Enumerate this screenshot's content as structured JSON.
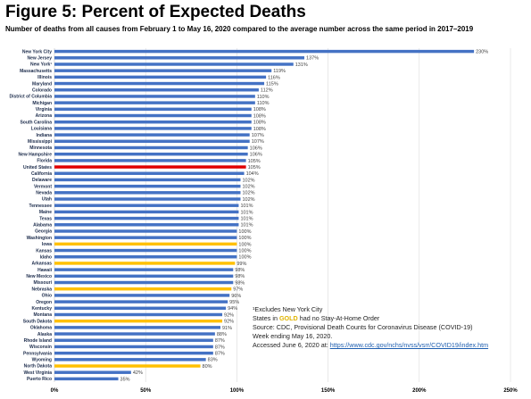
{
  "header": {
    "title": "Figure 5: Percent of Expected Deaths",
    "subtitle": "Number of deaths from all causes from February 1 to May 16, 2020  compared to the average number across the same period in 2017–2019"
  },
  "colors": {
    "default": "#4472c4",
    "highlight_us": "#e00000",
    "gold": "#ffc000",
    "grid": "#d9d9d9",
    "axis": "#bfbfbf"
  },
  "chart_data": {
    "type": "bar",
    "orientation": "horizontal",
    "title": "Figure 5: Percent of Expected Deaths",
    "xlim": [
      0,
      250
    ],
    "xticks": [
      0,
      50,
      100,
      150,
      200,
      250
    ],
    "xtick_labels": [
      "0%",
      "50%",
      "100%",
      "150%",
      "200%",
      "250%"
    ],
    "grid": "vertical",
    "bars": [
      {
        "label": "New York City",
        "value": 230,
        "value_label": "230%",
        "group": "default"
      },
      {
        "label": "New Jersey",
        "value": 137,
        "value_label": "137%",
        "group": "default"
      },
      {
        "label": "New York¹",
        "value": 131,
        "value_label": "131%",
        "group": "default"
      },
      {
        "label": "Massachusetts",
        "value": 119,
        "value_label": "119%",
        "group": "default"
      },
      {
        "label": "Illinois",
        "value": 116,
        "value_label": "116%",
        "group": "default"
      },
      {
        "label": "Maryland",
        "value": 115,
        "value_label": "115%",
        "group": "default"
      },
      {
        "label": "Colorado",
        "value": 112,
        "value_label": "112%",
        "group": "default"
      },
      {
        "label": "District of Columbia",
        "value": 110,
        "value_label": "110%",
        "group": "default"
      },
      {
        "label": "Michigan",
        "value": 110,
        "value_label": "110%",
        "group": "default"
      },
      {
        "label": "Virginia",
        "value": 108,
        "value_label": "108%",
        "group": "default"
      },
      {
        "label": "Arizona",
        "value": 108,
        "value_label": "108%",
        "group": "default"
      },
      {
        "label": "South Carolina",
        "value": 108,
        "value_label": "108%",
        "group": "default"
      },
      {
        "label": "Louisiana",
        "value": 108,
        "value_label": "108%",
        "group": "default"
      },
      {
        "label": "Indiana",
        "value": 107,
        "value_label": "107%",
        "group": "default"
      },
      {
        "label": "Mississippi",
        "value": 107,
        "value_label": "107%",
        "group": "default"
      },
      {
        "label": "Minnesota",
        "value": 106,
        "value_label": "106%",
        "group": "default"
      },
      {
        "label": "New Hampshire",
        "value": 106,
        "value_label": "106%",
        "group": "default"
      },
      {
        "label": "Florida",
        "value": 105,
        "value_label": "105%",
        "group": "default"
      },
      {
        "label": "United States",
        "value": 105,
        "value_label": "105%",
        "group": "highlight_us"
      },
      {
        "label": "California",
        "value": 104,
        "value_label": "104%",
        "group": "default"
      },
      {
        "label": "Delaware",
        "value": 102,
        "value_label": "102%",
        "group": "default"
      },
      {
        "label": "Vermont",
        "value": 102,
        "value_label": "102%",
        "group": "default"
      },
      {
        "label": "Nevada",
        "value": 102,
        "value_label": "102%",
        "group": "default"
      },
      {
        "label": "Utah",
        "value": 102,
        "value_label": "102%",
        "group": "default"
      },
      {
        "label": "Tennessee",
        "value": 101,
        "value_label": "101%",
        "group": "default"
      },
      {
        "label": "Maine",
        "value": 101,
        "value_label": "101%",
        "group": "default"
      },
      {
        "label": "Texas",
        "value": 101,
        "value_label": "101%",
        "group": "default"
      },
      {
        "label": "Alabama",
        "value": 101,
        "value_label": "101%",
        "group": "default"
      },
      {
        "label": "Georgia",
        "value": 100,
        "value_label": "100%",
        "group": "default"
      },
      {
        "label": "Washington",
        "value": 100,
        "value_label": "100%",
        "group": "default"
      },
      {
        "label": "Iowa",
        "value": 100,
        "value_label": "100%",
        "group": "gold"
      },
      {
        "label": "Kansas",
        "value": 100,
        "value_label": "100%",
        "group": "default"
      },
      {
        "label": "Idaho",
        "value": 100,
        "value_label": "100%",
        "group": "default"
      },
      {
        "label": "Arkansas",
        "value": 99,
        "value_label": "99%",
        "group": "gold"
      },
      {
        "label": "Hawaii",
        "value": 98,
        "value_label": "98%",
        "group": "default"
      },
      {
        "label": "New Mexico",
        "value": 98,
        "value_label": "98%",
        "group": "default"
      },
      {
        "label": "Missouri",
        "value": 98,
        "value_label": "98%",
        "group": "default"
      },
      {
        "label": "Nebraska",
        "value": 97,
        "value_label": "97%",
        "group": "gold"
      },
      {
        "label": "Ohio",
        "value": 96,
        "value_label": "96%",
        "group": "default"
      },
      {
        "label": "Oregon",
        "value": 95,
        "value_label": "95%",
        "group": "default"
      },
      {
        "label": "Kentucky",
        "value": 94,
        "value_label": "94%",
        "group": "default"
      },
      {
        "label": "Montana",
        "value": 92,
        "value_label": "92%",
        "group": "default"
      },
      {
        "label": "South Dakota",
        "value": 92,
        "value_label": "92%",
        "group": "gold"
      },
      {
        "label": "Oklahoma",
        "value": 91,
        "value_label": "91%",
        "group": "default"
      },
      {
        "label": "Alaska",
        "value": 88,
        "value_label": "88%",
        "group": "default"
      },
      {
        "label": "Rhode Island",
        "value": 87,
        "value_label": "87%",
        "group": "default"
      },
      {
        "label": "Wisconsin",
        "value": 87,
        "value_label": "87%",
        "group": "default"
      },
      {
        "label": "Pennsylvania",
        "value": 87,
        "value_label": "87%",
        "group": "default"
      },
      {
        "label": "Wyoming",
        "value": 83,
        "value_label": "83%",
        "group": "default"
      },
      {
        "label": "North Dakota",
        "value": 80,
        "value_label": "80%",
        "group": "gold"
      },
      {
        "label": "West Virginia",
        "value": 42,
        "value_label": "42%",
        "group": "default"
      },
      {
        "label": "Puerto Rico",
        "value": 35,
        "value_label": "35%",
        "group": "default"
      }
    ]
  },
  "notes": {
    "footnote": "¹Excludes New York City",
    "gold_pre": "States in ",
    "gold_word": "GOLD",
    "gold_post": " had no Stay-At-Home Order",
    "source": "Source: CDC, Provisional Death Counts for Coronavirus Disease (COVID-19)",
    "week": "Week ending May 16, 2020.",
    "accessed_pre": "Accessed June 6, 2020 at: ",
    "url": "https://www.cdc.gov/nchs/nvss/vsrr/COVID19/index.htm"
  }
}
